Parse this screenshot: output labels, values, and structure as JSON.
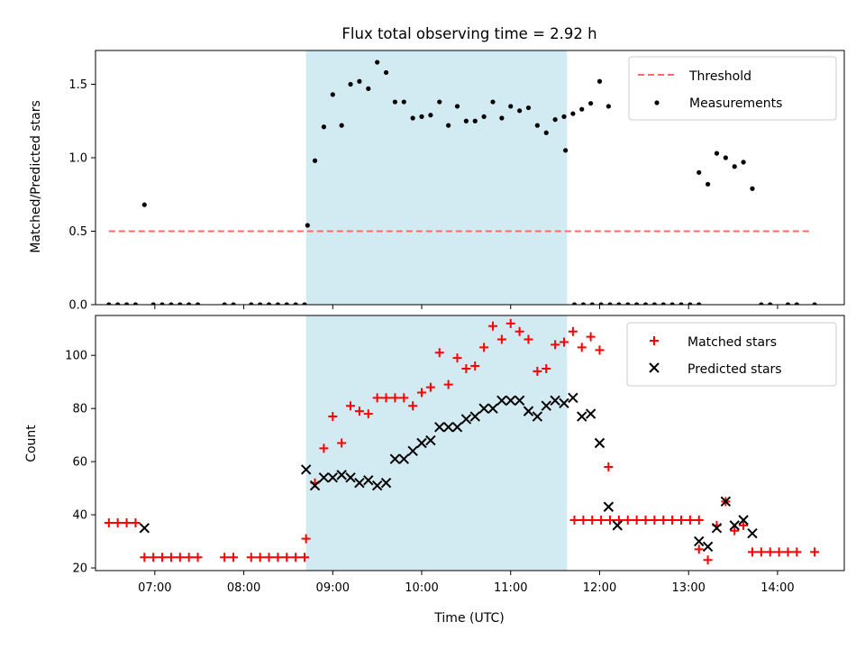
{
  "chart_data": [
    {
      "type": "scatter",
      "title": "Flux total observing time = 2.92 h",
      "xlabel": "",
      "ylabel": "Matched/Predicted stars",
      "xlim": [
        "06:20",
        "14:45"
      ],
      "ylim": [
        0,
        1.73
      ],
      "yticks": [
        0.0,
        0.5,
        1.0,
        1.5
      ],
      "ytick_labels": [
        "0.0",
        "0.5",
        "1.0",
        "1.5"
      ],
      "xticks": [
        "07:00",
        "08:00",
        "09:00",
        "10:00",
        "11:00",
        "12:00",
        "13:00",
        "14:00"
      ],
      "shaded_interval": [
        "08:42",
        "11:38"
      ],
      "shade_color": "#add8e6",
      "legend": {
        "placement": "top-right",
        "entries": [
          "Threshold",
          "Measurements"
        ]
      },
      "threshold": {
        "name": "Threshold",
        "value": 0.5,
        "x_range": [
          "06:29",
          "14:23"
        ],
        "color": "#ff6b6b",
        "style": "dashed"
      },
      "series": [
        {
          "name": "Measurements",
          "color": "#000000",
          "marker": "dot",
          "points": [
            [
              "06:29",
              0
            ],
            [
              "06:35",
              0
            ],
            [
              "06:41",
              0
            ],
            [
              "06:47",
              0
            ],
            [
              "06:53",
              0.68
            ],
            [
              "06:59",
              0
            ],
            [
              "07:05",
              0
            ],
            [
              "07:11",
              0
            ],
            [
              "07:17",
              0
            ],
            [
              "07:23",
              0
            ],
            [
              "07:29",
              0
            ],
            [
              "07:47",
              0
            ],
            [
              "07:53",
              0
            ],
            [
              "08:05",
              0
            ],
            [
              "08:11",
              0
            ],
            [
              "08:17",
              0
            ],
            [
              "08:23",
              0
            ],
            [
              "08:29",
              0
            ],
            [
              "08:35",
              0
            ],
            [
              "08:41",
              0
            ],
            [
              "08:43",
              0.54
            ],
            [
              "08:48",
              0.98
            ],
            [
              "08:54",
              1.21
            ],
            [
              "09:00",
              1.43
            ],
            [
              "09:06",
              1.22
            ],
            [
              "09:12",
              1.5
            ],
            [
              "09:18",
              1.52
            ],
            [
              "09:24",
              1.47
            ],
            [
              "09:30",
              1.65
            ],
            [
              "09:36",
              1.58
            ],
            [
              "09:42",
              1.38
            ],
            [
              "09:48",
              1.38
            ],
            [
              "09:54",
              1.27
            ],
            [
              "10:00",
              1.28
            ],
            [
              "10:06",
              1.29
            ],
            [
              "10:12",
              1.38
            ],
            [
              "10:18",
              1.22
            ],
            [
              "10:24",
              1.35
            ],
            [
              "10:30",
              1.25
            ],
            [
              "10:36",
              1.25
            ],
            [
              "10:42",
              1.28
            ],
            [
              "10:48",
              1.38
            ],
            [
              "10:54",
              1.27
            ],
            [
              "11:00",
              1.35
            ],
            [
              "11:06",
              1.32
            ],
            [
              "11:12",
              1.34
            ],
            [
              "11:18",
              1.22
            ],
            [
              "11:24",
              1.17
            ],
            [
              "11:30",
              1.26
            ],
            [
              "11:36",
              1.28
            ],
            [
              "11:42",
              1.3
            ],
            [
              "11:48",
              1.33
            ],
            [
              "11:54",
              1.37
            ],
            [
              "12:00",
              1.52
            ],
            [
              "12:06",
              1.35
            ],
            [
              "11:37",
              1.05
            ],
            [
              "11:43",
              0
            ],
            [
              "11:49",
              0
            ],
            [
              "11:55",
              0
            ],
            [
              "12:01",
              0
            ],
            [
              "12:07",
              0
            ],
            [
              "12:13",
              0
            ],
            [
              "12:19",
              0
            ],
            [
              "12:25",
              0
            ],
            [
              "12:31",
              0
            ],
            [
              "12:37",
              0
            ],
            [
              "12:43",
              0
            ],
            [
              "12:49",
              0
            ],
            [
              "12:55",
              0
            ],
            [
              "13:01",
              0
            ],
            [
              "13:07",
              0
            ],
            [
              "13:07",
              0.9
            ],
            [
              "13:13",
              0.82
            ],
            [
              "13:19",
              1.03
            ],
            [
              "13:25",
              1.0
            ],
            [
              "13:31",
              0.94
            ],
            [
              "13:37",
              0.97
            ],
            [
              "13:43",
              0.79
            ],
            [
              "13:49",
              0
            ],
            [
              "13:55",
              0
            ],
            [
              "14:07",
              0
            ],
            [
              "14:13",
              0
            ],
            [
              "14:25",
              0
            ]
          ]
        }
      ]
    },
    {
      "type": "scatter",
      "title": "",
      "xlabel": "Time (UTC)",
      "ylabel": "Count",
      "xlim": [
        "06:20",
        "14:45"
      ],
      "ylim": [
        19,
        115
      ],
      "yticks": [
        20,
        40,
        60,
        80,
        100
      ],
      "ytick_labels": [
        "20",
        "40",
        "60",
        "80",
        "100"
      ],
      "xticks": [
        "07:00",
        "08:00",
        "09:00",
        "10:00",
        "11:00",
        "12:00",
        "13:00",
        "14:00"
      ],
      "shaded_interval": [
        "08:42",
        "11:38"
      ],
      "shade_color": "#add8e6",
      "legend": {
        "placement": "top-right",
        "entries": [
          "Matched stars",
          "Predicted stars"
        ]
      },
      "series": [
        {
          "name": "Matched stars",
          "color": "#ff0000",
          "marker": "plus",
          "points": [
            [
              "06:29",
              37
            ],
            [
              "06:35",
              37
            ],
            [
              "06:41",
              37
            ],
            [
              "06:47",
              37
            ],
            [
              "06:53",
              24
            ],
            [
              "06:59",
              24
            ],
            [
              "07:05",
              24
            ],
            [
              "07:11",
              24
            ],
            [
              "07:17",
              24
            ],
            [
              "07:23",
              24
            ],
            [
              "07:29",
              24
            ],
            [
              "07:47",
              24
            ],
            [
              "07:53",
              24
            ],
            [
              "08:05",
              24
            ],
            [
              "08:11",
              24
            ],
            [
              "08:17",
              24
            ],
            [
              "08:23",
              24
            ],
            [
              "08:29",
              24
            ],
            [
              "08:35",
              24
            ],
            [
              "08:41",
              24
            ],
            [
              "08:42",
              31
            ],
            [
              "08:48",
              52
            ],
            [
              "08:54",
              65
            ],
            [
              "09:00",
              77
            ],
            [
              "09:06",
              67
            ],
            [
              "09:12",
              81
            ],
            [
              "09:18",
              79
            ],
            [
              "09:24",
              78
            ],
            [
              "09:30",
              84
            ],
            [
              "09:36",
              84
            ],
            [
              "09:42",
              84
            ],
            [
              "09:48",
              84
            ],
            [
              "09:54",
              81
            ],
            [
              "10:00",
              86
            ],
            [
              "10:06",
              88
            ],
            [
              "10:12",
              101
            ],
            [
              "10:18",
              89
            ],
            [
              "10:24",
              99
            ],
            [
              "10:30",
              95
            ],
            [
              "10:36",
              96
            ],
            [
              "10:42",
              103
            ],
            [
              "10:48",
              111
            ],
            [
              "10:54",
              106
            ],
            [
              "11:00",
              112
            ],
            [
              "11:06",
              109
            ],
            [
              "11:12",
              106
            ],
            [
              "11:18",
              94
            ],
            [
              "11:24",
              95
            ],
            [
              "11:30",
              104
            ],
            [
              "11:36",
              105
            ],
            [
              "11:42",
              109
            ],
            [
              "11:48",
              103
            ],
            [
              "11:54",
              107
            ],
            [
              "12:00",
              102
            ],
            [
              "12:06",
              58
            ],
            [
              "11:43",
              38
            ],
            [
              "11:49",
              38
            ],
            [
              "11:55",
              38
            ],
            [
              "12:01",
              38
            ],
            [
              "12:07",
              38
            ],
            [
              "12:13",
              38
            ],
            [
              "12:19",
              38
            ],
            [
              "12:25",
              38
            ],
            [
              "12:31",
              38
            ],
            [
              "12:37",
              38
            ],
            [
              "12:43",
              38
            ],
            [
              "12:49",
              38
            ],
            [
              "12:55",
              38
            ],
            [
              "13:01",
              38
            ],
            [
              "13:07",
              38
            ],
            [
              "13:07",
              27
            ],
            [
              "13:13",
              23
            ],
            [
              "13:19",
              36
            ],
            [
              "13:25",
              45
            ],
            [
              "13:31",
              34
            ],
            [
              "13:37",
              36
            ],
            [
              "13:43",
              26
            ],
            [
              "13:49",
              26
            ],
            [
              "13:55",
              26
            ],
            [
              "14:01",
              26
            ],
            [
              "14:07",
              26
            ],
            [
              "14:13",
              26
            ],
            [
              "14:25",
              26
            ]
          ]
        },
        {
          "name": "Predicted stars",
          "color": "#000000",
          "marker": "x",
          "points": [
            [
              "06:53",
              35
            ],
            [
              "08:42",
              57
            ],
            [
              "08:48",
              51
            ],
            [
              "08:54",
              54
            ],
            [
              "09:00",
              54
            ],
            [
              "09:06",
              55
            ],
            [
              "09:12",
              54
            ],
            [
              "09:18",
              52
            ],
            [
              "09:24",
              53
            ],
            [
              "09:30",
              51
            ],
            [
              "09:36",
              52
            ],
            [
              "09:42",
              61
            ],
            [
              "09:48",
              61
            ],
            [
              "09:54",
              64
            ],
            [
              "10:00",
              67
            ],
            [
              "10:06",
              68
            ],
            [
              "10:12",
              73
            ],
            [
              "10:18",
              73
            ],
            [
              "10:24",
              73
            ],
            [
              "10:30",
              76
            ],
            [
              "10:36",
              77
            ],
            [
              "10:42",
              80
            ],
            [
              "10:48",
              80
            ],
            [
              "10:54",
              83
            ],
            [
              "11:00",
              83
            ],
            [
              "11:06",
              83
            ],
            [
              "11:12",
              79
            ],
            [
              "11:18",
              77
            ],
            [
              "11:24",
              81
            ],
            [
              "11:30",
              83
            ],
            [
              "11:36",
              82
            ],
            [
              "11:42",
              84
            ],
            [
              "11:48",
              77
            ],
            [
              "11:54",
              78
            ],
            [
              "12:00",
              67
            ],
            [
              "12:06",
              43
            ],
            [
              "12:12",
              36
            ],
            [
              "13:07",
              30
            ],
            [
              "13:13",
              28
            ],
            [
              "13:19",
              35
            ],
            [
              "13:25",
              45
            ],
            [
              "13:31",
              36
            ],
            [
              "13:37",
              38
            ],
            [
              "13:43",
              33
            ]
          ]
        }
      ]
    }
  ]
}
